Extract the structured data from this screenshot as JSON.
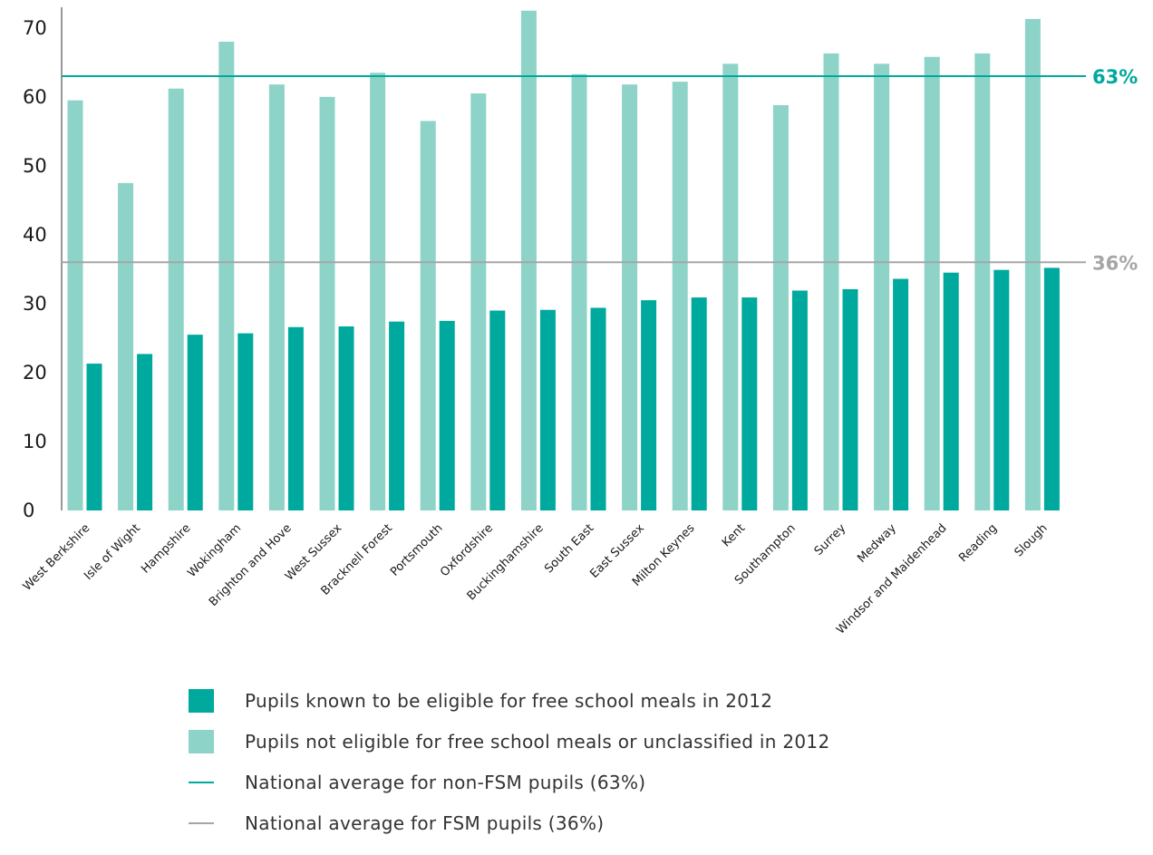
{
  "colors": {
    "fsm": "#00A99D",
    "non_fsm": "#8ED3C8",
    "line_non_fsm": "#00A99D",
    "line_fsm": "#A6A6A6",
    "axis": "#333333",
    "text": "#1a1a1a"
  },
  "chart_data": {
    "type": "bar",
    "categories": [
      "West Berkshire",
      "Isle of Wight",
      "Hampshire",
      "Wokingham",
      "Brighton and Hove",
      "West Sussex",
      "Bracknell Forest",
      "Portsmouth",
      "Oxfordshire",
      "Buckinghamshire",
      "South East",
      "East Sussex",
      "Milton Keynes",
      "Kent",
      "Southampton",
      "Surrey",
      "Medway",
      "Windsor and Maidenhead",
      "Reading",
      "Slough"
    ],
    "series": [
      {
        "name": "Pupils not eligible for free school meals or unclassified in 2012",
        "key": "non_fsm",
        "values": [
          59.5,
          47.5,
          61.2,
          68.0,
          61.8,
          60.0,
          63.5,
          56.5,
          60.5,
          72.5,
          63.3,
          61.8,
          62.2,
          64.8,
          58.8,
          66.3,
          64.8,
          65.8,
          66.3,
          71.3
        ]
      },
      {
        "name": "Pupils known to be eligible for free school meals in 2012",
        "key": "fsm",
        "values": [
          21.3,
          22.7,
          25.5,
          25.7,
          26.6,
          26.7,
          27.4,
          27.5,
          29.0,
          29.1,
          29.4,
          30.5,
          30.9,
          30.9,
          31.9,
          32.1,
          33.6,
          34.5,
          34.9,
          35.2
        ]
      }
    ],
    "reference_lines": [
      {
        "name": "National average for non-FSM pupils (63%)",
        "value": 63,
        "label": "63%",
        "key": "non_fsm"
      },
      {
        "name": "National average for FSM pupils (36%)",
        "value": 36,
        "label": "36%",
        "key": "fsm"
      }
    ],
    "yticks": [
      0,
      10,
      20,
      30,
      40,
      50,
      60,
      70
    ],
    "ylim": [
      0,
      73
    ],
    "grid": false,
    "legend_position": "bottom"
  },
  "legend": {
    "items": [
      {
        "label": "Pupils known to be eligible for free school meals in 2012",
        "color": "#00A99D",
        "kind": "box"
      },
      {
        "label": "Pupils not eligible for free school meals or unclassified in 2012",
        "color": "#8ED3C8",
        "kind": "box"
      },
      {
        "label": "National average for non-FSM pupils (63%)",
        "color": "#00A99D",
        "kind": "line"
      },
      {
        "label": "National average for FSM pupils (36%)",
        "color": "#A6A6A6",
        "kind": "line"
      }
    ]
  }
}
